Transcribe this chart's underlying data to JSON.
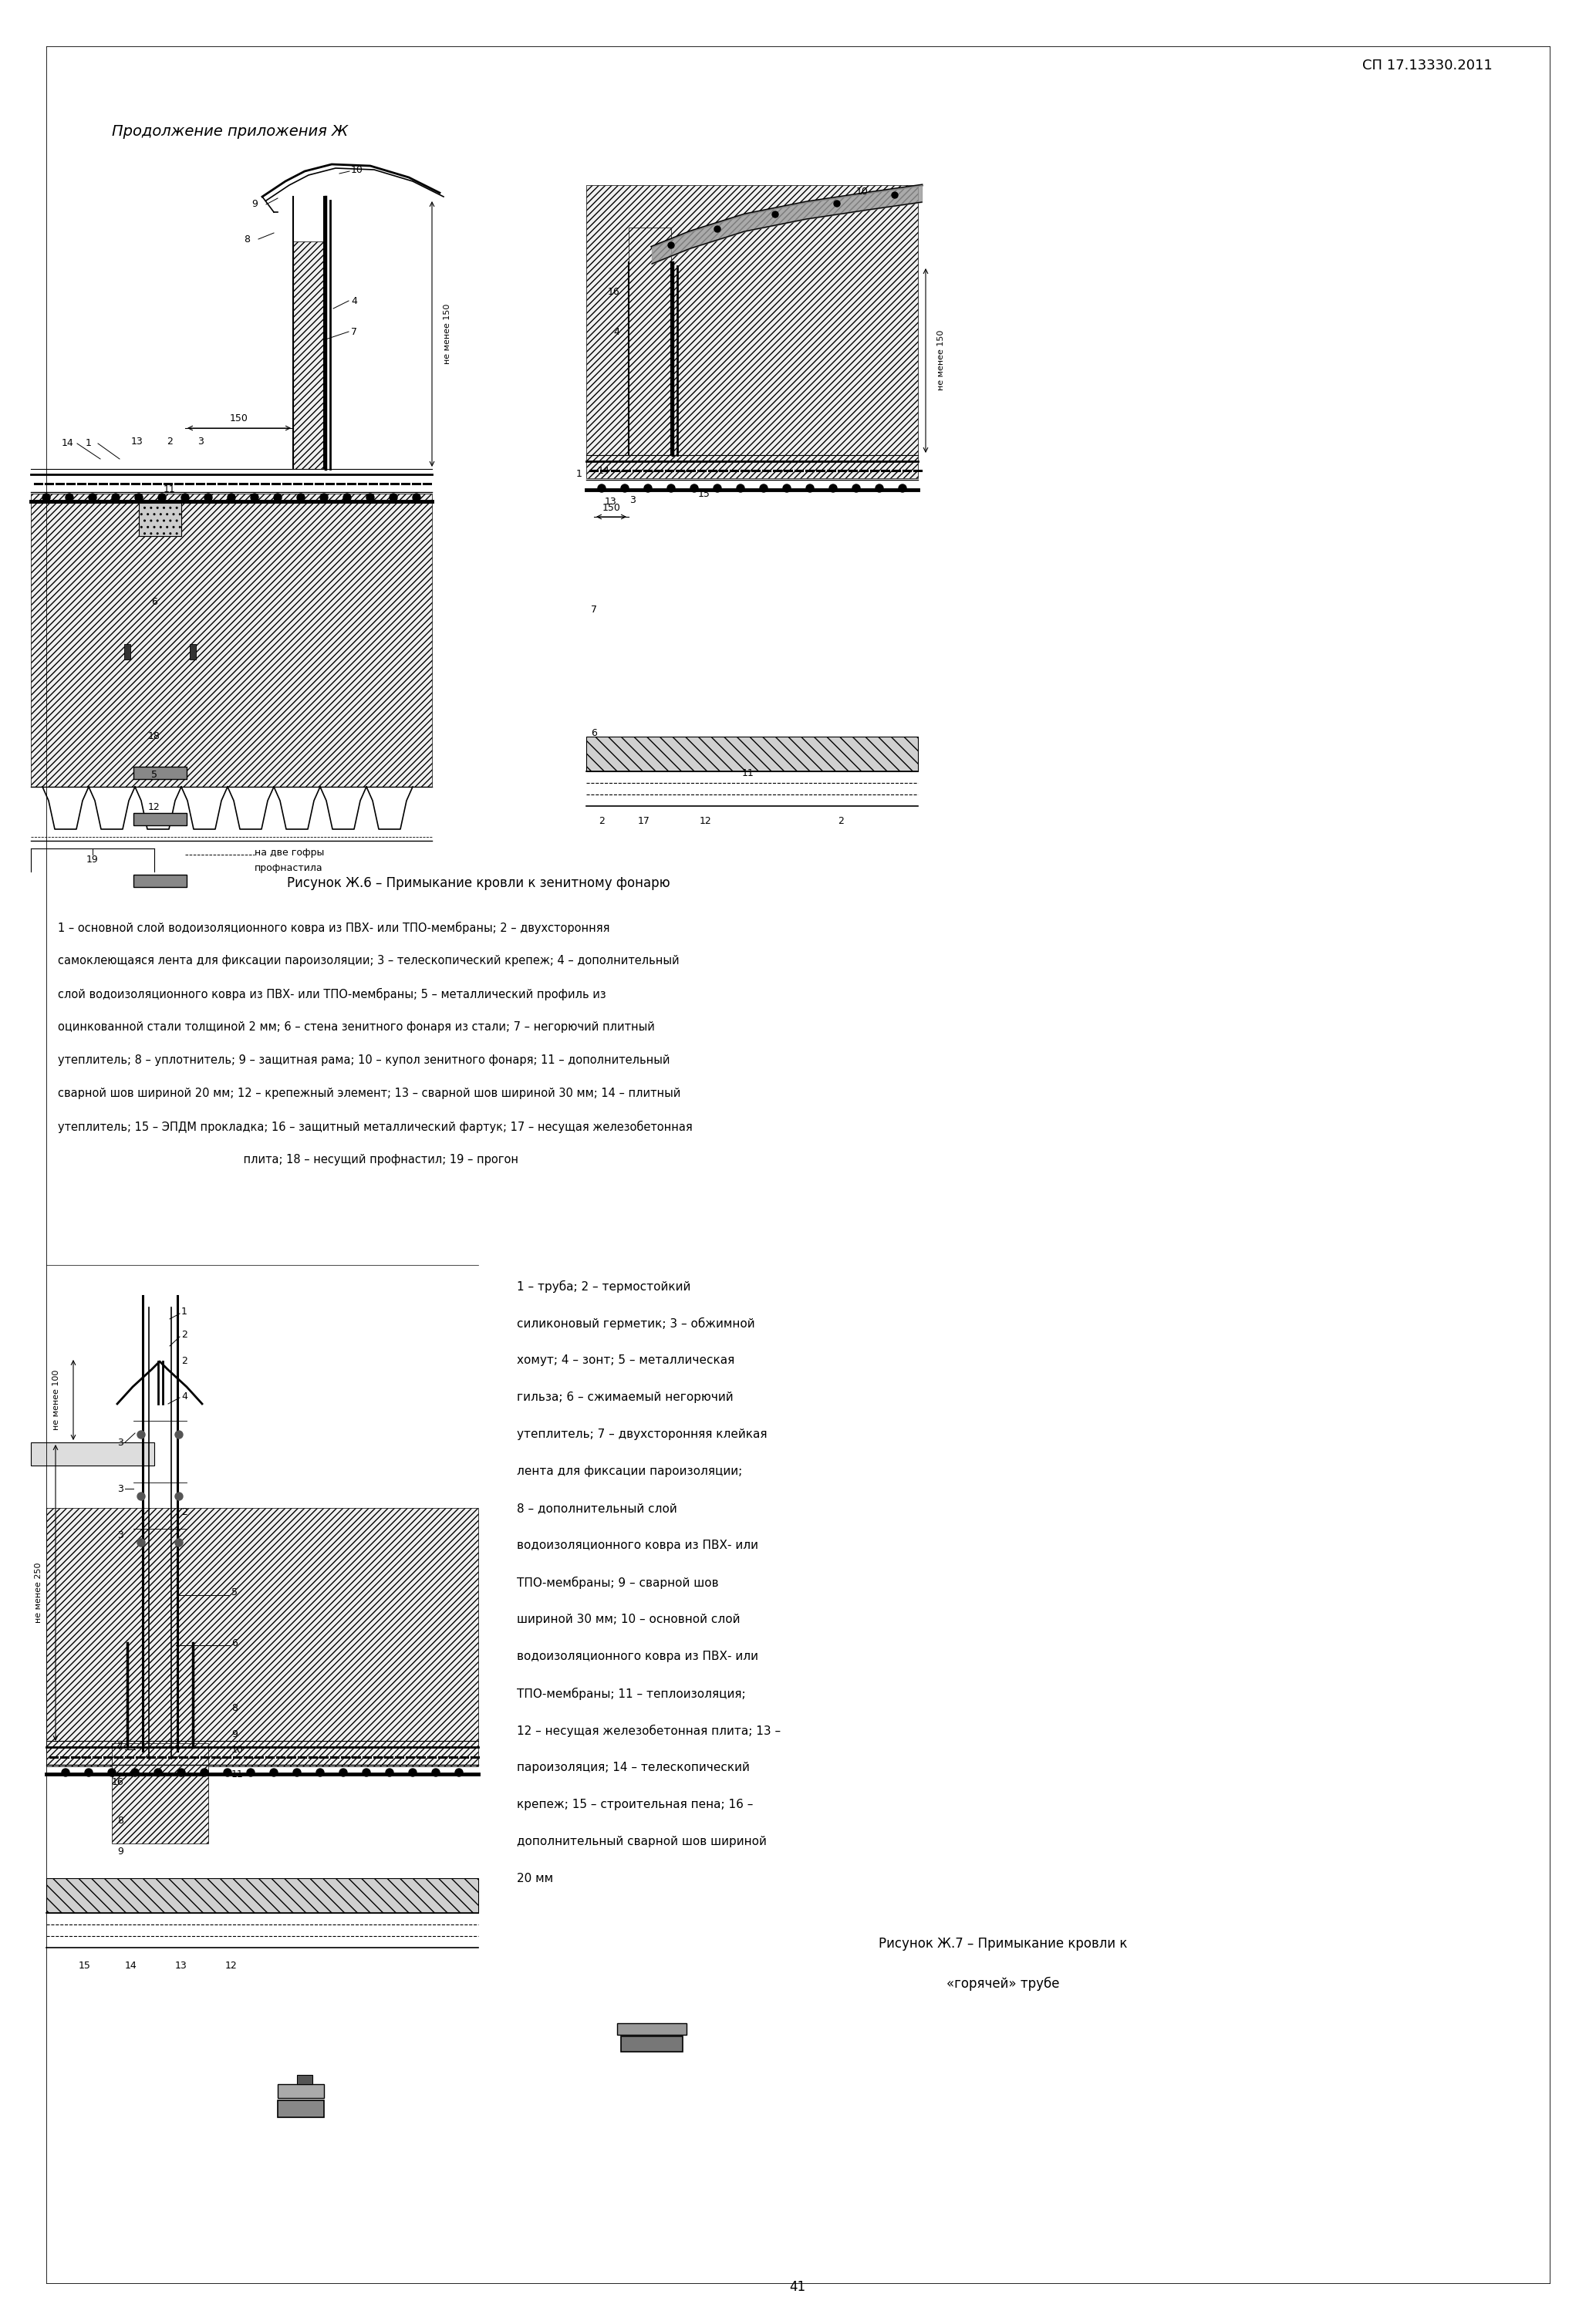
{
  "page_title_right": "СП 17.13330.2011",
  "page_title_left": "Продолжение приложения Ж",
  "page_number": "41",
  "figure1_caption": "Рисунок Ж.6 – Примыкание кровли к зенитному фонарю",
  "figure2_caption_line1": "Рисунок Ж.7 – Примыкание кровли к",
  "figure2_caption_line2": "«горячей» трубе",
  "legend1_lines": [
    "1 – основной слой водоизоляционного ковра из ПВХ- или ТПО-мембраны; 2 – двухсторонняя",
    "самоклеющаяся лента для фиксации пароизоляции; 3 – телескопический крепеж; 4 – дополнительный",
    "слой водоизоляционного ковра из ПВХ- или ТПО-мембраны; 5 – металлический профиль из",
    "оцинкованной стали толщиной 2 мм; 6 – стена зенитного фонаря из стали; 7 – негорючий плитный",
    "утеплитель; 8 – уплотнитель; 9 – защитная рама; 10 – купол зенитного фонаря; 11 – дополнительный",
    "сварной шов шириной 20 мм; 12 – крепежный элемент; 13 – сварной шов шириной 30 мм; 14 – плитный",
    "утеплитель; 15 – ЭПДМ прокладка; 16 – защитный металлический фартук; 17 – несущая железобетонная",
    "                                                    плита; 18 – несущий профнастил; 19 – прогон"
  ],
  "legend2_lines": [
    "1 – труба; 2 – термостойкий",
    "силиконовый герметик; 3 – обжимной",
    "хомут; 4 – зонт; 5 – металлическая",
    "гильза; 6 – сжимаемый негорючий",
    "утеплитель; 7 – двухсторонняя клейкая",
    "лента для фиксации пароизоляции;",
    "8 – дополнительный слой",
    "водоизоляционного ковра из ПВХ- или",
    "ТПО-мембраны; 9 – сварной шов",
    "шириной 30 мм; 10 – основной слой",
    "водоизоляционного ковра из ПВХ- или",
    "ТПО-мембраны; 11 – теплоизоляция;",
    "12 – несущая железобетонная плита; 13 –",
    "пароизоляция; 14 – телескопический",
    "крепеж; 15 – строительная пена; 16 –",
    "дополнительный сварной шов шириной",
    "20 мм"
  ],
  "bg_color": "#ffffff",
  "text_color": "#000000"
}
